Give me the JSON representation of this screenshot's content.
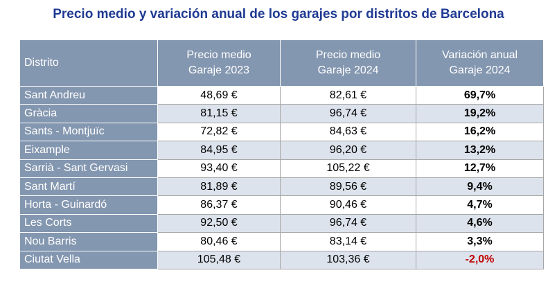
{
  "chart_data": {
    "type": "table",
    "title": "Precio medio y variación anual de los garajes por distritos de Barcelona",
    "columns": [
      "Distrito",
      "Precio medio Garaje 2023",
      "Precio medio Garaje 2024",
      "Variación anual Garaje 2024"
    ],
    "header": {
      "col1": "Distrito",
      "col2_line1": "Precio medio",
      "col2_line2": "Garaje 2023",
      "col3_line1": "Precio medio",
      "col3_line2": "Garaje 2024",
      "col4_line1": "Variación anual",
      "col4_line2": "Garaje 2024"
    },
    "rows": [
      {
        "district": "Sant Andreu",
        "p2023": "48,69 €",
        "p2024": "82,61 €",
        "var": "69,7%"
      },
      {
        "district": "Gràcia",
        "p2023": "81,15 €",
        "p2024": "96,74 €",
        "var": "19,2%"
      },
      {
        "district": "Sants - Montjuïc",
        "p2023": "72,82 €",
        "p2024": "84,63 €",
        "var": "16,2%"
      },
      {
        "district": "Eixample",
        "p2023": "84,95 €",
        "p2024": "96,20 €",
        "var": "13,2%"
      },
      {
        "district": "Sarrià - Sant Gervasi",
        "p2023": "93,40 €",
        "p2024": "105,22 €",
        "var": "12,7%"
      },
      {
        "district": "Sant Martí",
        "p2023": "81,89 €",
        "p2024": "89,56 €",
        "var": "9,4%"
      },
      {
        "district": "Horta - Guinardó",
        "p2023": "86,37 €",
        "p2024": "90,46 €",
        "var": "4,7%"
      },
      {
        "district": "Les Corts",
        "p2023": "92,50 €",
        "p2024": "96,74 €",
        "var": "4,6%"
      },
      {
        "district": "Nou Barris",
        "p2023": "80,46 €",
        "p2024": "83,14 €",
        "var": "3,3%"
      },
      {
        "district": "Ciutat Vella",
        "p2023": "105,48 €",
        "p2024": "103,36 €",
        "var": "-2,0%"
      }
    ],
    "colors": {
      "title": "#1f3a93",
      "header_bg": "#8497b0",
      "row_alt_bg": "#dde3ec",
      "negative": "#c00000"
    }
  }
}
